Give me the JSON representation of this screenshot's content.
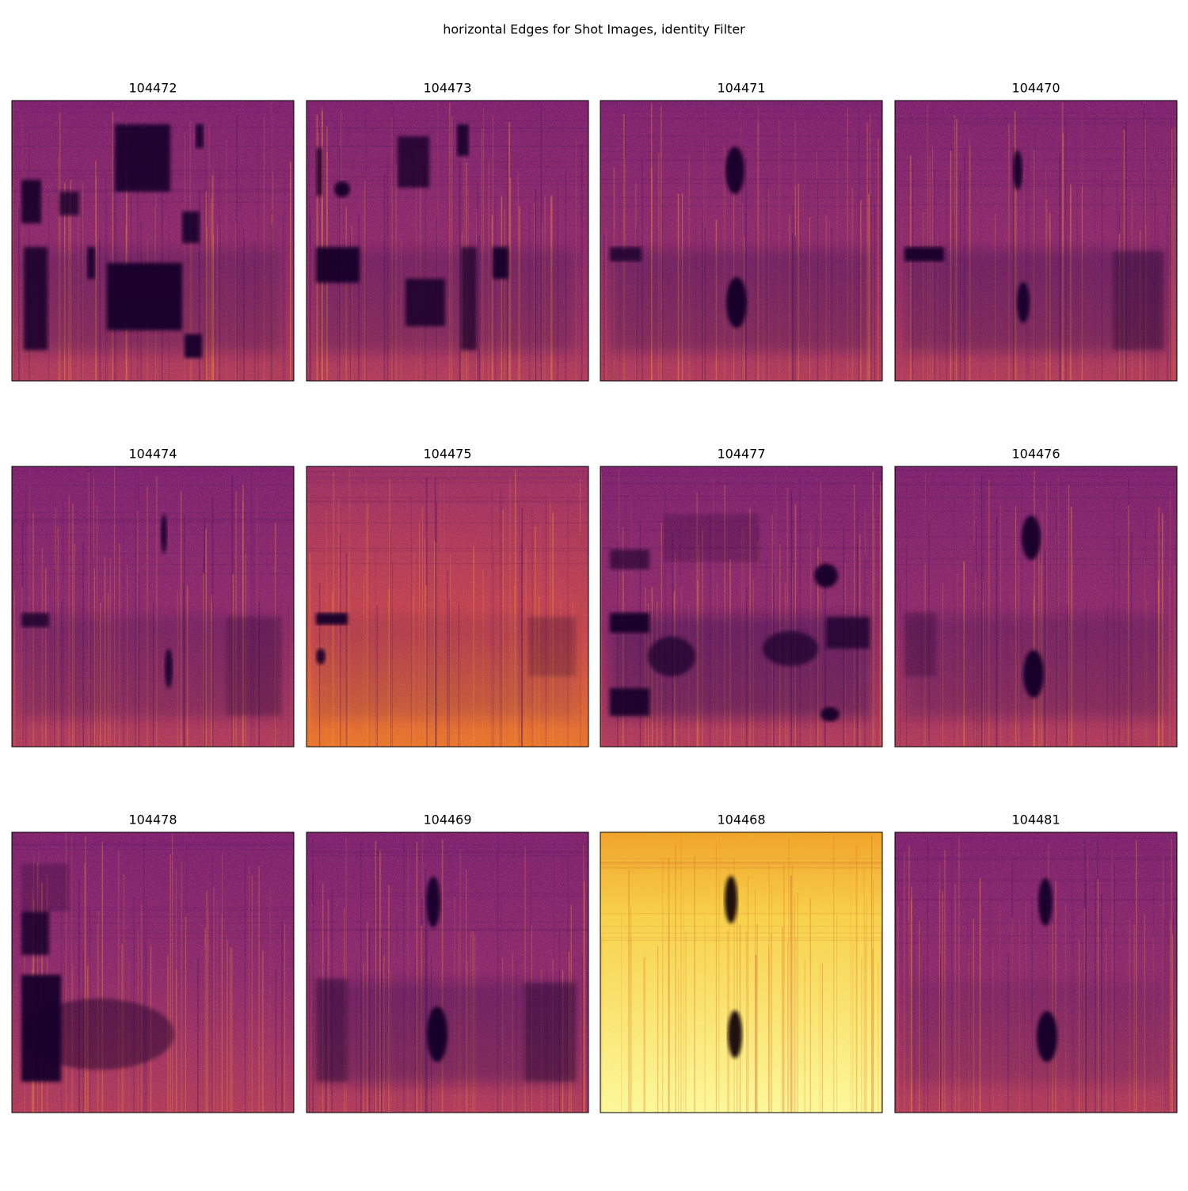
{
  "title": "horizontal Edges for Shot Images, identity Filter",
  "panels": [
    "104472",
    "104473",
    "104471",
    "104470",
    "104474",
    "104475",
    "104477",
    "104476",
    "104478",
    "104469",
    "104468",
    "104481"
  ]
}
